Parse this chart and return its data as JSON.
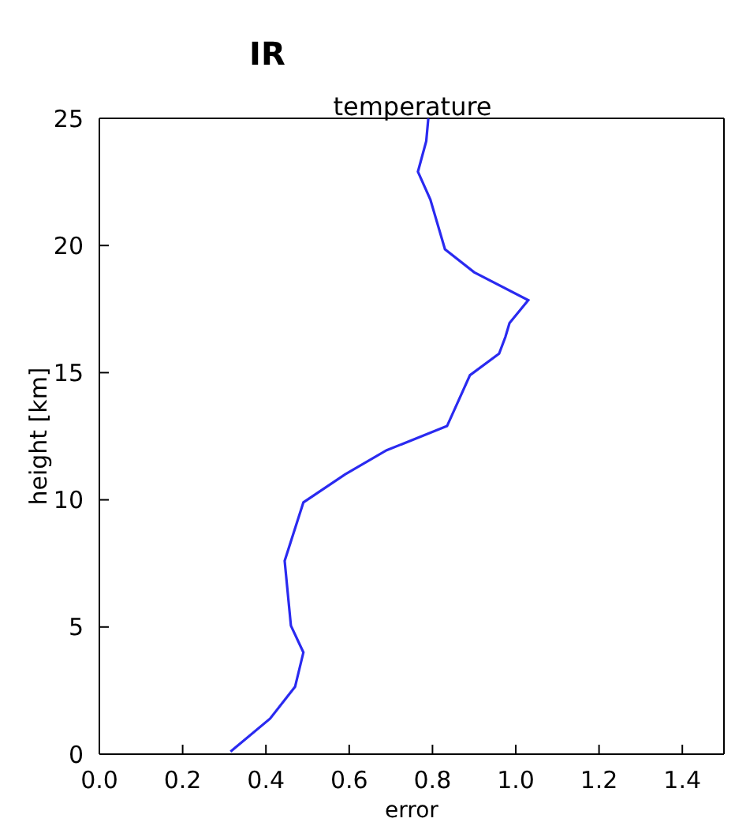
{
  "chart_data": {
    "type": "line",
    "title": "IR",
    "subtitle": "temperature",
    "xlabel": "error",
    "ylabel": "height [km]",
    "x": [
      0.79,
      0.785,
      0.765,
      0.795,
      0.83,
      0.9,
      1.03,
      0.985,
      0.975,
      0.96,
      0.89,
      0.835,
      0.69,
      0.59,
      0.49,
      0.445,
      0.46,
      0.49,
      0.47,
      0.41,
      0.315
    ],
    "series": [
      {
        "color": "#2a2af0",
        "values": [
          25,
          24.1,
          22.9,
          21.8,
          19.85,
          18.95,
          17.85,
          16.95,
          16.4,
          15.75,
          14.9,
          12.9,
          11.95,
          11.0,
          9.9,
          7.6,
          5.05,
          4.0,
          2.65,
          1.4,
          0.1
        ]
      }
    ],
    "xlim": [
      0,
      1.5
    ],
    "ylim": [
      0,
      25
    ],
    "xticks": [
      {
        "value": 0,
        "label": "0.0"
      },
      {
        "value": 0.2,
        "label": "0.2"
      },
      {
        "value": 0.4,
        "label": "0.4"
      },
      {
        "value": 0.6,
        "label": "0.6"
      },
      {
        "value": 0.8,
        "label": "0.8"
      },
      {
        "value": 1,
        "label": "1.0"
      },
      {
        "value": 1.2,
        "label": "1.2"
      },
      {
        "value": 1.4,
        "label": "1.4"
      }
    ],
    "yticks": [
      0,
      5,
      10,
      15,
      20,
      25
    ],
    "grid": false,
    "legend": false
  }
}
